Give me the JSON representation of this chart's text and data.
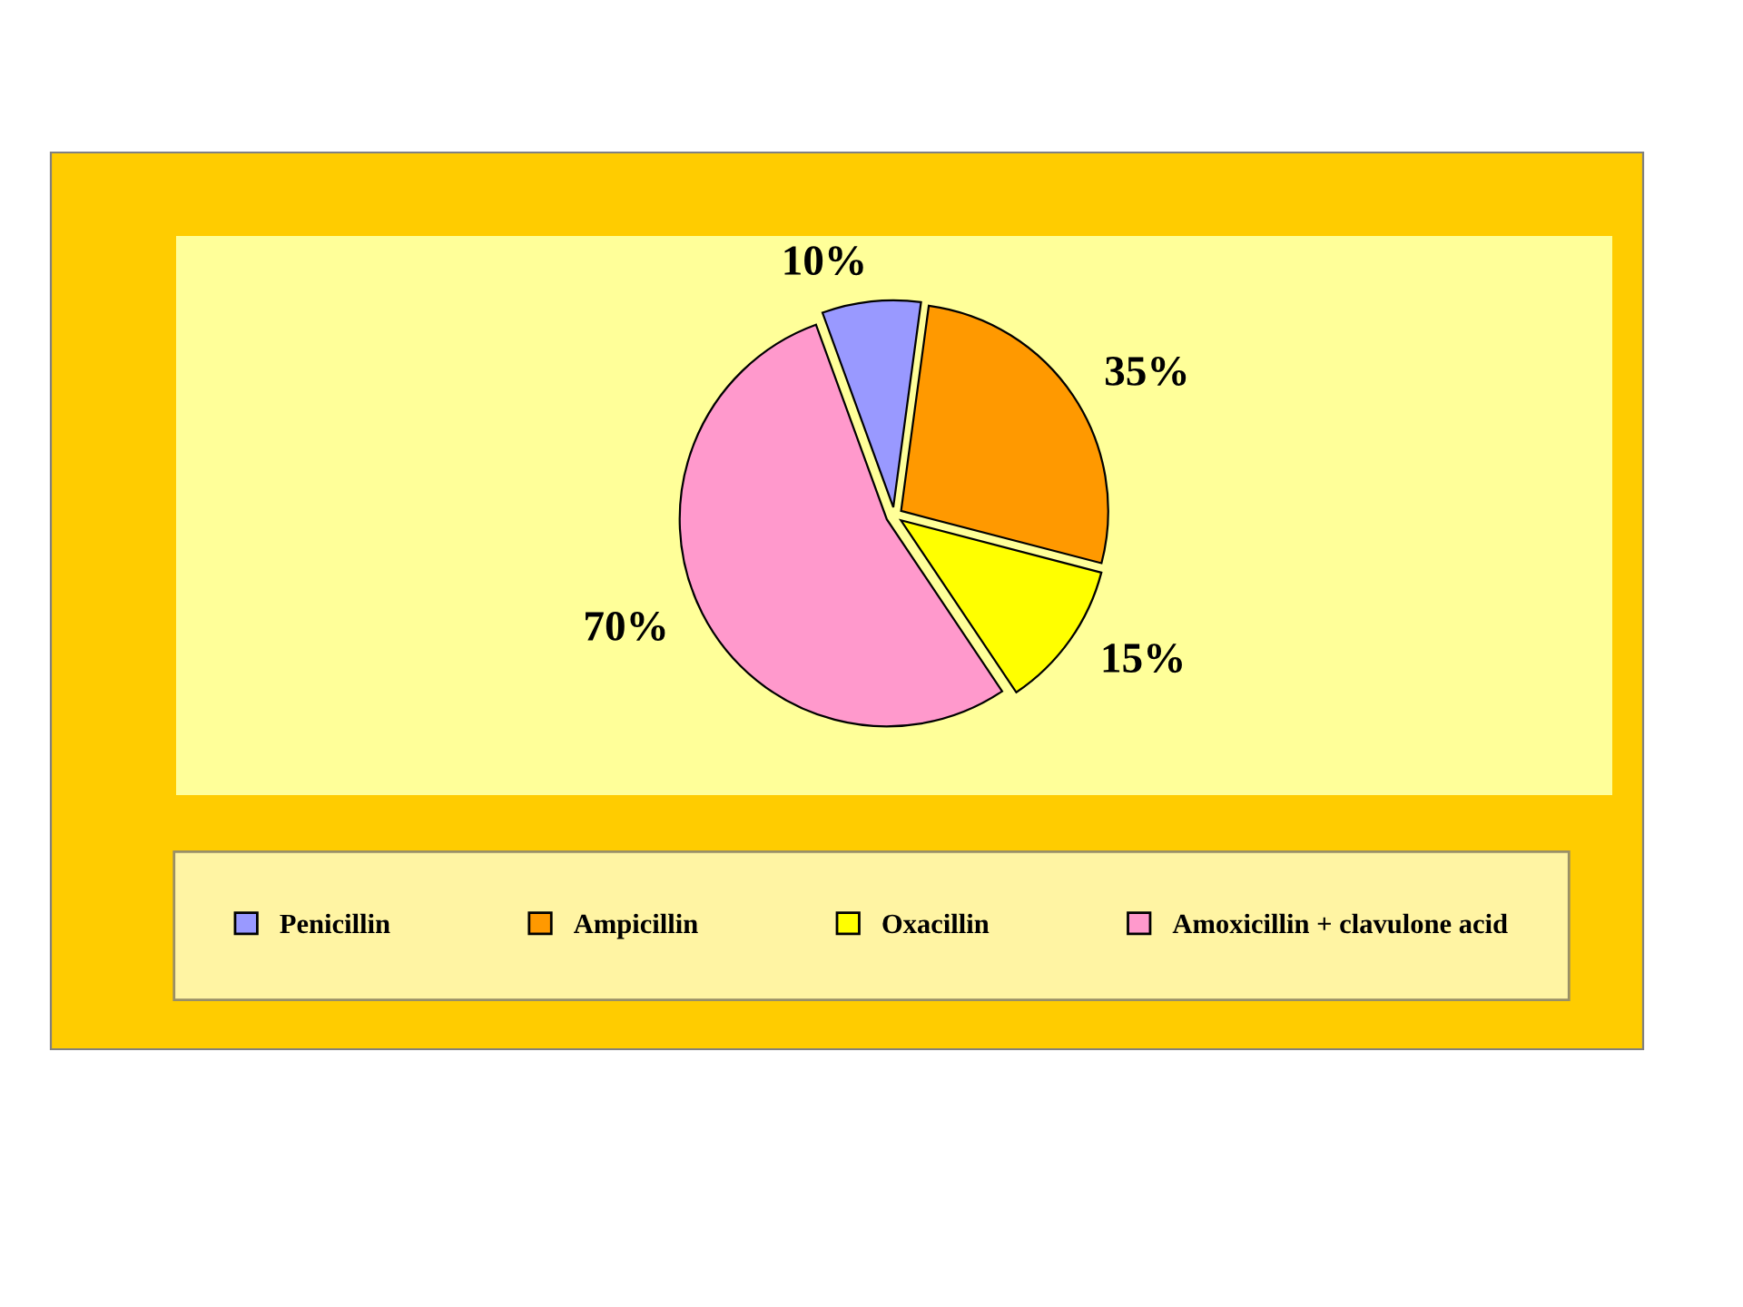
{
  "chart_data": {
    "type": "pie",
    "categories": [
      "Penicillin",
      "Ampicillin",
      "Oxacillin",
      "Amoxicillin + clavulone acid"
    ],
    "values": [
      10,
      35,
      15,
      70
    ],
    "colors": [
      "#9999ff",
      "#ff9900",
      "#ffff00",
      "#ff99cc"
    ],
    "value_labels": [
      "10%",
      "35%",
      "15%",
      "70%"
    ],
    "legend": "bottom"
  }
}
